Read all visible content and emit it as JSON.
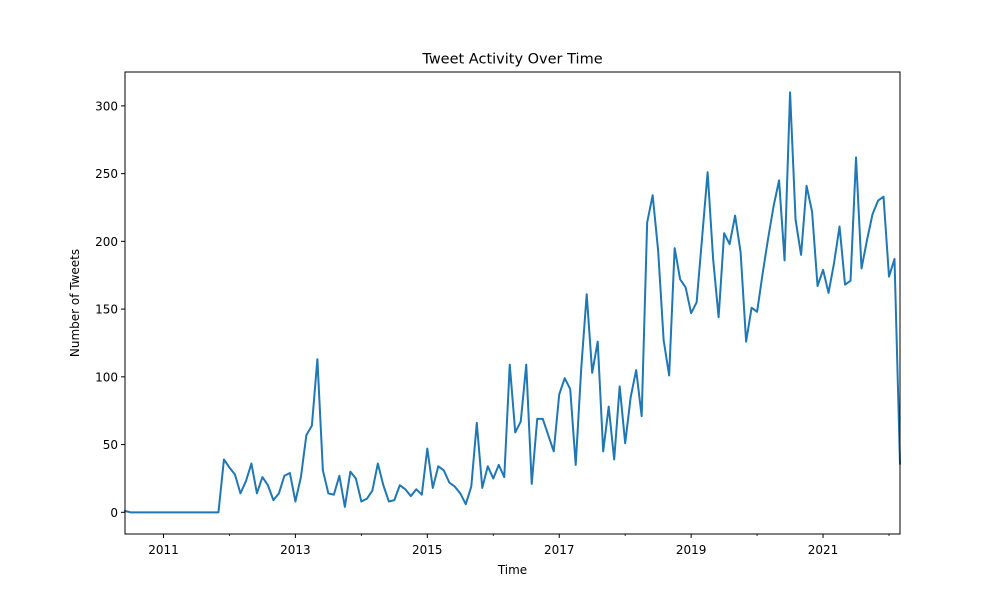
{
  "chart_data": {
    "type": "line",
    "title": "Tweet Activity Over Time",
    "xlabel": "Time",
    "ylabel": "Number of Tweets",
    "xlim": [
      "2010-06",
      "2022-03"
    ],
    "ylim": [
      -16,
      325
    ],
    "x_ticks": [
      "2011",
      "2013",
      "2015",
      "2017",
      "2019",
      "2021"
    ],
    "y_ticks": [
      0,
      50,
      100,
      150,
      200,
      250,
      300
    ],
    "grid": false,
    "line_color": "#1f77b4",
    "series": [
      {
        "x": [
          "2010-06",
          "2010-07",
          "2010-08",
          "2010-09",
          "2010-10",
          "2010-11",
          "2010-12",
          "2011-01",
          "2011-02",
          "2011-03",
          "2011-04",
          "2011-05",
          "2011-06",
          "2011-07",
          "2011-08",
          "2011-09",
          "2011-10",
          "2011-11",
          "2011-12",
          "2012-01",
          "2012-02",
          "2012-03",
          "2012-04",
          "2012-05",
          "2012-06",
          "2012-07",
          "2012-08",
          "2012-09",
          "2012-10",
          "2012-11",
          "2012-12",
          "2013-01",
          "2013-02",
          "2013-03",
          "2013-04",
          "2013-05",
          "2013-06",
          "2013-07",
          "2013-08",
          "2013-09",
          "2013-10",
          "2013-11",
          "2013-12",
          "2014-01",
          "2014-02",
          "2014-03",
          "2014-04",
          "2014-05",
          "2014-06",
          "2014-07",
          "2014-08",
          "2014-09",
          "2014-10",
          "2014-11",
          "2014-12",
          "2015-01",
          "2015-02",
          "2015-03",
          "2015-04",
          "2015-05",
          "2015-06",
          "2015-07",
          "2015-08",
          "2015-09",
          "2015-10",
          "2015-11",
          "2015-12",
          "2016-01",
          "2016-02",
          "2016-03",
          "2016-04",
          "2016-05",
          "2016-06",
          "2016-07",
          "2016-08",
          "2016-09",
          "2016-10",
          "2016-11",
          "2016-12",
          "2017-01",
          "2017-02",
          "2017-03",
          "2017-04",
          "2017-05",
          "2017-06",
          "2017-07",
          "2017-08",
          "2017-09",
          "2017-10",
          "2017-11",
          "2017-12",
          "2018-01",
          "2018-02",
          "2018-03",
          "2018-04",
          "2018-05",
          "2018-06",
          "2018-07",
          "2018-08",
          "2018-09",
          "2018-10",
          "2018-11",
          "2018-12",
          "2019-01",
          "2019-02",
          "2019-03",
          "2019-04",
          "2019-05",
          "2019-06",
          "2019-07",
          "2019-08",
          "2019-09",
          "2019-10",
          "2019-11",
          "2019-12",
          "2020-01",
          "2020-02",
          "2020-03",
          "2020-04",
          "2020-05",
          "2020-06",
          "2020-07",
          "2020-08",
          "2020-09",
          "2020-10",
          "2020-11",
          "2020-12",
          "2021-01",
          "2021-02",
          "2021-03",
          "2021-04",
          "2021-05",
          "2021-06",
          "2021-07",
          "2021-08",
          "2021-09",
          "2021-10",
          "2021-11",
          "2021-12",
          "2022-01",
          "2022-02",
          "2022-03"
        ],
        "values": [
          1,
          0,
          0,
          0,
          0,
          0,
          0,
          0,
          0,
          0,
          0,
          0,
          0,
          0,
          0,
          0,
          0,
          0,
          39,
          33,
          28,
          14,
          23,
          36,
          14,
          26,
          20,
          9,
          14,
          27,
          29,
          8,
          26,
          57,
          64,
          113,
          31,
          14,
          13,
          27,
          4,
          30,
          25,
          8,
          10,
          16,
          36,
          20,
          8,
          9,
          20,
          17,
          12,
          17,
          13,
          47,
          18,
          34,
          31,
          22,
          19,
          14,
          6,
          19,
          66,
          18,
          34,
          25,
          35,
          26,
          109,
          59,
          67,
          109,
          21,
          69,
          69,
          57,
          45,
          87,
          99,
          91,
          35,
          106,
          161,
          103,
          126,
          45,
          78,
          39,
          93,
          51,
          85,
          105,
          71,
          214,
          234,
          193,
          127,
          101,
          195,
          172,
          166,
          147,
          155,
          203,
          251,
          187,
          144,
          206,
          198,
          219,
          192,
          126,
          151,
          148,
          176,
          202,
          226,
          245,
          186,
          310,
          216,
          190,
          241,
          222,
          167,
          179,
          162,
          184,
          211,
          168,
          171,
          262,
          180,
          201,
          220,
          230,
          233,
          174,
          187,
          36
        ]
      }
    ]
  }
}
